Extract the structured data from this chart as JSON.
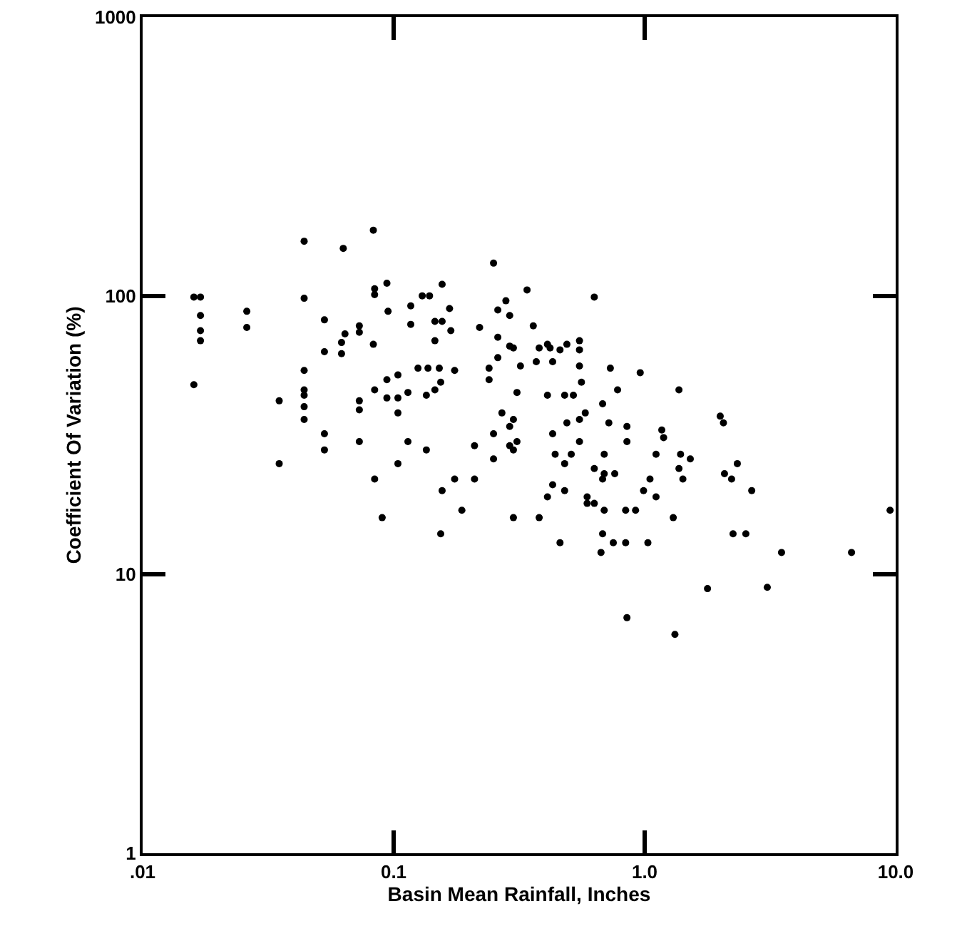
{
  "chart_data": {
    "type": "scatter",
    "xlabel": "Basin Mean Rainfall, Inches",
    "ylabel": "Coefficient Of Variation (%)",
    "log": "xy",
    "xlim": [
      0.01,
      10
    ],
    "ylim": [
      1,
      1000
    ],
    "xticks": [
      {
        "value": 0.01,
        "label": ".01"
      },
      0.1,
      {
        "value": 1,
        "label": "1.0"
      },
      {
        "value": 10,
        "label": "10.0"
      }
    ],
    "yticks": [
      1,
      10,
      100,
      1000
    ],
    "marker": "circle",
    "color": "#000000",
    "x": [
      0.016,
      0.017,
      0.017,
      0.017,
      0.017,
      0.016,
      0.026,
      0.026,
      0.044,
      0.044,
      0.044,
      0.044,
      0.044,
      0.044,
      0.044,
      0.035,
      0.035,
      0.053,
      0.053,
      0.053,
      0.053,
      0.063,
      0.064,
      0.062,
      0.062,
      0.073,
      0.073,
      0.073,
      0.073,
      0.073,
      0.083,
      0.084,
      0.084,
      0.094,
      0.095,
      0.083,
      0.084,
      0.094,
      0.094,
      0.084,
      0.25,
      0.13,
      0.139,
      0.156,
      0.117,
      0.167,
      0.117,
      0.146,
      0.156,
      0.169,
      0.146,
      0.125,
      0.137,
      0.152,
      0.175,
      0.154,
      0.104,
      0.114,
      0.104,
      0.135,
      0.146,
      0.104,
      0.114,
      0.135,
      0.104,
      0.175,
      0.156,
      0.21,
      0.09,
      0.154,
      0.187,
      0.22,
      0.26,
      0.28,
      0.29,
      0.26,
      0.29,
      0.3,
      0.26,
      0.36,
      0.34,
      0.24,
      0.24,
      0.32,
      0.37,
      0.38,
      0.41,
      0.42,
      0.46,
      0.49,
      0.55,
      0.55,
      0.55,
      0.56,
      0.43,
      0.31,
      0.41,
      0.48,
      0.52,
      0.63,
      0.73,
      0.78,
      0.27,
      0.3,
      0.29,
      0.25,
      0.21,
      0.29,
      0.3,
      0.31,
      0.25,
      0.43,
      0.49,
      0.55,
      0.58,
      0.55,
      0.44,
      0.51,
      0.48,
      0.43,
      0.41,
      0.48,
      0.3,
      0.38,
      0.46,
      0.68,
      0.63,
      0.68,
      0.59,
      0.59,
      0.63,
      0.68,
      0.67,
      0.96,
      1.37,
      0.72,
      0.85,
      1.17,
      1.19,
      0.85,
      2.0,
      2.06,
      0.69,
      1.11,
      1.39,
      1.52,
      0.69,
      0.76,
      1.37,
      1.42,
      1.05,
      2.08,
      2.22,
      2.34,
      0.99,
      1.11,
      2.67,
      0.69,
      0.84,
      0.92,
      1.3,
      0.75,
      0.84,
      1.03,
      2.25,
      2.53,
      3.51,
      6.67,
      9.5,
      1.78,
      3.08,
      0.85,
      1.32
    ],
    "values": [
      99,
      99,
      85,
      75,
      69,
      48,
      88,
      77,
      157,
      98,
      54,
      46,
      44,
      40,
      36,
      42,
      25,
      82,
      63,
      32,
      28,
      148,
      73,
      68,
      62,
      78,
      74,
      42,
      39,
      30,
      172,
      106,
      101,
      111,
      88,
      67,
      46,
      50,
      43,
      22,
      131,
      100,
      100,
      110,
      92,
      90,
      79,
      81,
      81,
      75,
      69,
      55,
      55,
      55,
      54,
      49,
      52,
      45,
      43,
      44,
      46,
      38,
      30,
      28,
      25,
      22,
      20,
      22,
      16,
      14,
      17,
      77,
      89,
      96,
      85,
      71,
      66,
      65,
      60,
      78,
      105,
      55,
      50,
      56,
      58,
      65,
      67,
      65,
      64,
      67,
      69,
      64,
      56,
      49,
      58,
      45,
      44,
      44,
      44,
      99,
      55,
      46,
      38,
      36,
      34,
      32,
      29,
      29,
      28,
      30,
      26,
      32,
      35,
      36,
      38,
      30,
      27,
      27,
      25,
      21,
      19,
      20,
      16,
      16,
      13,
      41,
      24,
      22,
      19,
      18,
      18,
      14,
      12,
      53,
      46,
      35,
      34,
      33,
      31,
      30,
      37,
      35,
      27,
      27,
      27,
      26,
      23,
      23,
      24,
      22,
      22,
      23,
      22,
      25,
      20,
      19,
      20,
      17,
      17,
      17,
      16,
      13,
      13,
      13,
      14,
      14,
      12,
      12,
      17,
      8.9,
      9,
      7.0,
      6.1
    ]
  }
}
